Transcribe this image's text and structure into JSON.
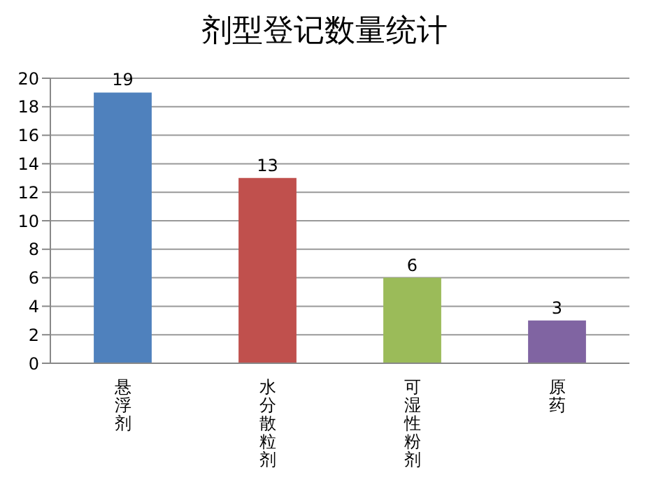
{
  "chart_data": {
    "type": "bar",
    "title": "剂型登记数量统计",
    "categories": [
      "悬浮剂",
      "水分散粒剂",
      "可湿性粉剂",
      "原药"
    ],
    "values": [
      19,
      13,
      6,
      3
    ],
    "colors": [
      "#4f81bd",
      "#c0504d",
      "#9bbb59",
      "#8064a2"
    ],
    "ylim": [
      0,
      20
    ],
    "yticks": [
      0,
      2,
      4,
      6,
      8,
      10,
      12,
      14,
      16,
      18,
      20
    ],
    "grid": "y",
    "data_labels": true
  }
}
